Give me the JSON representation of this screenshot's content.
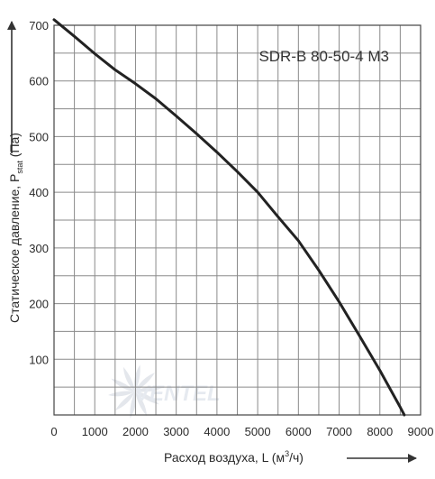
{
  "chart_data": {
    "type": "line",
    "title": "SDR-B 80-50-4 M3",
    "xlabel": {
      "text": "Расход воздуха, L (м",
      "sup": "3",
      "tail": "/ч)"
    },
    "ylabel": {
      "text": "Статическое давление, P",
      "sub": "stat",
      "tail": " (Па)"
    },
    "xlim": [
      0,
      9000
    ],
    "ylim": [
      0,
      700
    ],
    "x_ticks": [
      0,
      1000,
      2000,
      3000,
      4000,
      5000,
      6000,
      7000,
      8000,
      9000
    ],
    "y_ticks": [
      100,
      200,
      300,
      400,
      500,
      600,
      700
    ],
    "x_minor_step": 500,
    "y_minor_step": 50,
    "grid": true,
    "series": [
      {
        "x": [
          0,
          500,
          1000,
          1500,
          2000,
          2500,
          3000,
          3500,
          4000,
          4500,
          5000,
          5500,
          6000,
          6500,
          7000,
          7500,
          8000,
          8500,
          8600
        ],
        "y": [
          710,
          680,
          649,
          620,
          595,
          568,
          537,
          505,
          472,
          437,
          400,
          356,
          313,
          260,
          203,
          142,
          80,
          14,
          0
        ]
      }
    ],
    "line_color": "#222222",
    "grid_color": "#8a8a8a",
    "watermark": "VENTEL"
  }
}
